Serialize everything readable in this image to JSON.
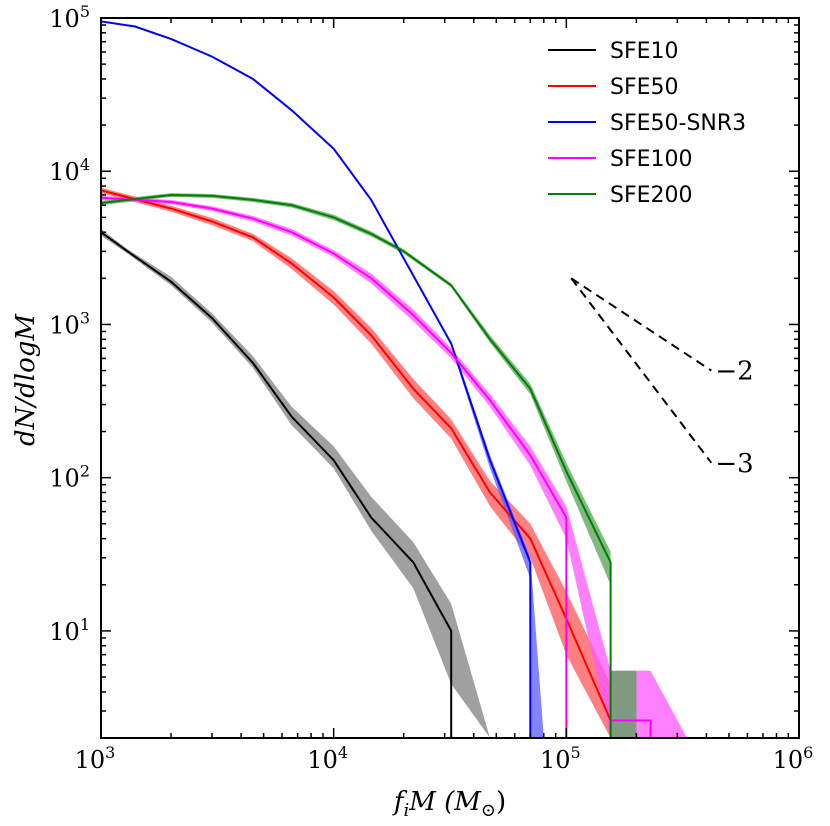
{
  "chart_data": {
    "type": "line",
    "xscale": "log",
    "yscale": "log",
    "xlabel": "f_i M (M_⊙)",
    "ylabel": "dN/dlogM",
    "xlim": [
      1000,
      1000000
    ],
    "ylim": [
      2,
      100000
    ],
    "xticks": [
      {
        "value": 1000,
        "base": "10",
        "exp": "3"
      },
      {
        "value": 10000,
        "base": "10",
        "exp": "4"
      },
      {
        "value": 100000,
        "base": "10",
        "exp": "5"
      },
      {
        "value": 1000000,
        "base": "10",
        "exp": "6"
      }
    ],
    "yticks": [
      {
        "value": 10,
        "base": "10",
        "exp": "1"
      },
      {
        "value": 100,
        "base": "10",
        "exp": "2"
      },
      {
        "value": 1000,
        "base": "10",
        "exp": "3"
      },
      {
        "value": 10000,
        "base": "10",
        "exp": "4"
      },
      {
        "value": 100000,
        "base": "10",
        "exp": "5"
      }
    ],
    "legend_position": "top-right",
    "series": [
      {
        "name": "SFE10",
        "color": "#000000",
        "band_color": "#808080",
        "x": [
          1000,
          1300,
          2000,
          3000,
          4500,
          6600,
          10000,
          14500,
          22000,
          32000,
          32000
        ],
        "y": [
          4000,
          3000,
          1900,
          1100,
          560,
          250,
          130,
          55,
          28,
          10,
          2
        ],
        "band_x": [
          1000,
          1300,
          2000,
          3000,
          4500,
          6600,
          10000,
          14500,
          22000,
          32000,
          47000
        ],
        "band_upper": [
          4200,
          3100,
          2050,
          1180,
          620,
          290,
          160,
          75,
          38,
          15,
          2
        ],
        "band_lower": [
          3800,
          2900,
          1800,
          1030,
          520,
          220,
          115,
          45,
          19,
          4.5,
          2
        ]
      },
      {
        "name": "SFE50",
        "color": "#ff0000",
        "band_color": "#ff5555",
        "x": [
          1000,
          2000,
          3000,
          4500,
          6600,
          10000,
          14500,
          22000,
          32000,
          47000,
          70000,
          100000,
          155000
        ],
        "y": [
          7500,
          5700,
          4700,
          3700,
          2500,
          1500,
          850,
          380,
          210,
          80,
          40,
          12,
          2.6
        ],
        "band_x": [
          1000,
          2000,
          3000,
          4500,
          6600,
          10000,
          14500,
          22000,
          32000,
          47000,
          70000,
          100000,
          155000
        ],
        "band_upper": [
          7800,
          5950,
          4950,
          3900,
          2700,
          1650,
          950,
          440,
          240,
          95,
          50,
          18,
          4.5
        ],
        "band_lower": [
          7200,
          5450,
          4450,
          3500,
          2300,
          1350,
          750,
          330,
          180,
          65,
          30,
          7,
          2
        ]
      },
      {
        "name": "SFE50-SNR3",
        "color": "#0000ff",
        "band_color": "#5a5aff",
        "x": [
          1000,
          1400,
          2000,
          3000,
          4500,
          6600,
          10000,
          14500,
          20000,
          32000,
          47000,
          70000,
          70000
        ],
        "y": [
          95000,
          88000,
          73000,
          56000,
          40000,
          25000,
          14000,
          6500,
          2700,
          750,
          130,
          28,
          2
        ],
        "band_x": [
          32000,
          47000,
          70000,
          70000,
          80000
        ],
        "band_upper": [
          780,
          140,
          30,
          30,
          2
        ],
        "band_lower": [
          720,
          115,
          22,
          2,
          2
        ]
      },
      {
        "name": "SFE100",
        "color": "#ff00ff",
        "band_color": "#ff55ff",
        "x": [
          1000,
          2000,
          3000,
          4500,
          6600,
          10000,
          14500,
          22000,
          32000,
          47000,
          70000,
          100000,
          100000,
          155000,
          155000,
          230000,
          230000,
          155000
        ],
        "y": [
          6700,
          6300,
          5700,
          4900,
          4000,
          2900,
          2000,
          1150,
          650,
          320,
          140,
          55,
          2,
          2,
          2.6,
          2.6,
          2,
          2
        ],
        "band_x": [
          1000,
          2000,
          3000,
          4500,
          6600,
          10000,
          14500,
          22000,
          32000,
          47000,
          70000,
          100000,
          155000,
          230000,
          330000
        ],
        "band_upper": [
          6900,
          6500,
          5900,
          5100,
          4200,
          3050,
          2150,
          1250,
          700,
          350,
          160,
          65,
          5.5,
          5.5,
          2
        ],
        "band_lower": [
          6500,
          6100,
          5500,
          4700,
          3800,
          2750,
          1850,
          1050,
          600,
          290,
          120,
          40,
          2,
          2,
          2
        ]
      },
      {
        "name": "SFE200",
        "color": "#008000",
        "band_color": "#55a355",
        "x": [
          1000,
          2000,
          3000,
          4500,
          6600,
          10000,
          14500,
          20000,
          32000,
          47000,
          70000,
          100000,
          155000,
          155000
        ],
        "y": [
          6200,
          7000,
          6900,
          6500,
          6000,
          5000,
          3900,
          3000,
          1800,
          800,
          380,
          110,
          28,
          2
        ],
        "band_x": [
          1000,
          2000,
          3000,
          4500,
          6600,
          10000,
          14500,
          20000,
          32000,
          47000,
          70000,
          100000,
          155000,
          155000,
          200000
        ],
        "band_upper": [
          6400,
          7200,
          7100,
          6700,
          6200,
          5200,
          4050,
          3100,
          1850,
          850,
          410,
          125,
          33,
          5.5,
          5.5
        ],
        "band_lower": [
          6000,
          6800,
          6700,
          6300,
          5800,
          4800,
          3750,
          2900,
          1750,
          760,
          350,
          95,
          20,
          2,
          2
        ]
      }
    ],
    "slope_guides": [
      {
        "label": "−2",
        "x": [
          105000,
          420000
        ],
        "y": [
          2000,
          500
        ]
      },
      {
        "label": "−3",
        "x": [
          105000,
          420000
        ],
        "y": [
          2000,
          125
        ]
      }
    ]
  }
}
